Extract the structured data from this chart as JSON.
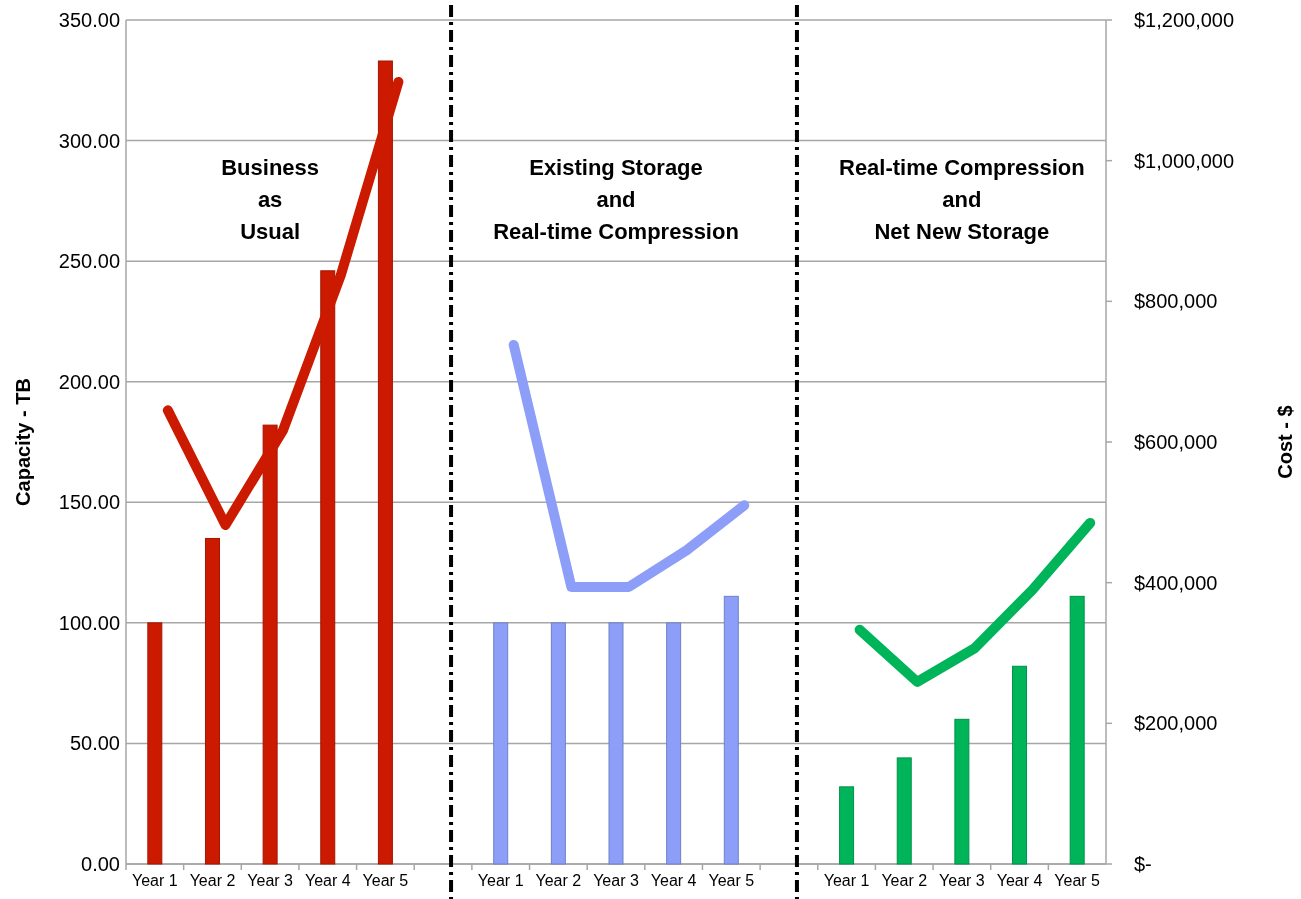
{
  "chart_data": {
    "type": "bar",
    "ylabel": "Capacity - TB",
    "y2label": "Cost - $",
    "categories": [
      "Year 1",
      "Year 2",
      "Year 3",
      "Year 4",
      "Year 5",
      null,
      "Year 1",
      "Year 2",
      "Year 3",
      "Year 4",
      "Year 5",
      null,
      "Year 1",
      "Year 2",
      "Year 3",
      "Year 4",
      "Year 5"
    ],
    "ylim": [
      0,
      350
    ],
    "yticks": [
      {
        "value": 0,
        "label": "0.00"
      },
      {
        "value": 50,
        "label": "50.00"
      },
      {
        "value": 100,
        "label": "100.00"
      },
      {
        "value": 150,
        "label": "150.00"
      },
      {
        "value": 200,
        "label": "200.00"
      },
      {
        "value": 250,
        "label": "250.00"
      },
      {
        "value": 300,
        "label": "300.00"
      },
      {
        "value": 350,
        "label": "350.00"
      }
    ],
    "y2lim": [
      0,
      1200000
    ],
    "y2ticks": [
      {
        "value": 0,
        "label": "$-"
      },
      {
        "value": 200000,
        "label": "$200,000"
      },
      {
        "value": 400000,
        "label": "$400,000"
      },
      {
        "value": 600000,
        "label": "$600,000"
      },
      {
        "value": 800000,
        "label": "$800,000"
      },
      {
        "value": 1000000,
        "label": "$1,000,000"
      },
      {
        "value": 1200000,
        "label": "$1,200,000"
      }
    ],
    "grid": "y",
    "line_style": "solid",
    "marker": "none",
    "annotations": [
      "Business\nas\nUsual",
      "Existing Storage\nand\nReal-time Compression",
      "Real-time Compression\nand\nNet New Storage"
    ],
    "series": [
      {
        "color": "#cc1a00",
        "values": [
          100,
          135,
          182,
          246,
          333,
          null,
          null,
          null,
          null,
          null,
          null,
          null,
          null,
          null,
          null,
          null,
          null
        ]
      },
      {
        "color": "#8c9ef7",
        "values": [
          null,
          null,
          null,
          null,
          null,
          null,
          100,
          100,
          100,
          100,
          111,
          null,
          null,
          null,
          null,
          null,
          null
        ]
      },
      {
        "color": "#00b45a",
        "values": [
          null,
          null,
          null,
          null,
          null,
          null,
          null,
          null,
          null,
          null,
          null,
          null,
          32,
          44,
          60,
          82,
          111
        ]
      },
      {
        "type": "line",
        "axis": "y2",
        "color": "#cc1a00",
        "values": [
          645000,
          482000,
          617000,
          837000,
          1112000,
          null,
          null,
          null,
          null,
          null,
          null,
          null,
          null,
          null,
          null,
          null,
          null
        ]
      },
      {
        "type": "line",
        "axis": "y2",
        "color": "#8c9ef7",
        "values": [
          null,
          null,
          null,
          null,
          null,
          null,
          738000,
          394000,
          394000,
          446000,
          510000,
          null,
          null,
          null,
          null,
          null,
          null
        ]
      },
      {
        "type": "line",
        "axis": "y2",
        "color": "#00b45a",
        "values": [
          null,
          null,
          null,
          null,
          null,
          null,
          null,
          null,
          null,
          null,
          null,
          null,
          333000,
          259000,
          307000,
          390000,
          485000
        ]
      }
    ]
  }
}
